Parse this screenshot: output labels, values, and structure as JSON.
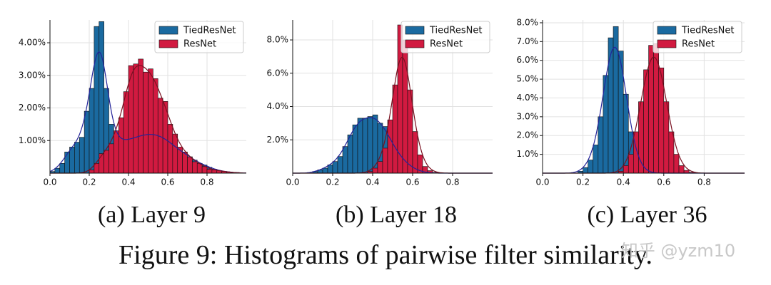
{
  "figure_caption": "Figure 9: Histograms of pairwise filter similarity.",
  "watermark": "知乎 @yzm10",
  "chart_data": [
    {
      "type": "histogram",
      "caption": "(a) Layer 9",
      "legend": "upper right",
      "grid": true,
      "bins": [
        0,
        0.025,
        0.05,
        0.075,
        0.1,
        0.125,
        0.15,
        0.175,
        0.2,
        0.225,
        0.25,
        0.275,
        0.3,
        0.325,
        0.35,
        0.375,
        0.4,
        0.425,
        0.45,
        0.475,
        0.5,
        0.525,
        0.55,
        0.575,
        0.6,
        0.625,
        0.65,
        0.675,
        0.7,
        0.725,
        0.75,
        0.775,
        0.8,
        0.825,
        0.85,
        0.875,
        0.9,
        0.925,
        0.95,
        0.975,
        1
      ],
      "xlim": [
        0,
        1
      ],
      "xticks": [
        {
          "value": 0,
          "label": "0.0"
        },
        0.2,
        0.4,
        0.6,
        0.8
      ],
      "ylim": [
        0,
        4.7
      ],
      "yticks": [
        {
          "value": 1,
          "label": "1.00%"
        },
        {
          "value": 2,
          "label": "2.00%"
        },
        {
          "value": 3,
          "label": "3.00%"
        },
        {
          "value": 4,
          "label": "4.00%"
        }
      ],
      "series": [
        {
          "name": "TiedResNet",
          "color": "#1a6aa0",
          "line_color": "#23239a",
          "values": [
            0.05,
            0.15,
            0.3,
            0.65,
            0.8,
            0.95,
            1.1,
            1.9,
            2.6,
            4.5,
            4.65,
            2.6,
            1.5,
            1.0,
            1.0,
            1.0,
            1.05,
            1.1,
            1.15,
            1.2,
            1.2,
            1.2,
            1.15,
            1.05,
            0.95,
            0.8,
            0.7,
            0.6,
            0.5,
            0.4,
            0.3,
            0.25,
            0.18,
            0.12,
            0.08,
            0.05,
            0.03,
            0.02,
            0.01,
            0
          ]
        },
        {
          "name": "ResNet",
          "color": "#d11a40",
          "line_color": "#7a1020",
          "values": [
            0,
            0,
            0,
            0,
            0,
            0,
            0,
            0,
            0.1,
            0.3,
            0.6,
            0.7,
            0.9,
            1.3,
            1.7,
            2.5,
            3.3,
            3.35,
            3.5,
            3.1,
            3.2,
            2.9,
            2.3,
            2.2,
            1.5,
            1.2,
            0.8,
            0.65,
            0.5,
            0.35,
            0.3,
            0.2,
            0.12,
            0.1,
            0.08,
            0.05,
            0.03,
            0.02,
            0.01,
            0
          ]
        }
      ]
    },
    {
      "type": "histogram",
      "caption": "(b) Layer 18",
      "legend": "upper right",
      "grid": true,
      "bins": [
        0,
        0.025,
        0.05,
        0.075,
        0.1,
        0.125,
        0.15,
        0.175,
        0.2,
        0.225,
        0.25,
        0.275,
        0.3,
        0.325,
        0.35,
        0.375,
        0.4,
        0.425,
        0.45,
        0.475,
        0.5,
        0.525,
        0.55,
        0.575,
        0.6,
        0.625,
        0.65,
        0.675,
        0.7,
        0.725,
        0.75,
        0.775,
        0.8,
        0.825,
        0.85,
        0.875,
        0.9,
        0.925,
        0.95,
        0.975,
        1
      ],
      "xlim": [
        0,
        1
      ],
      "xticks": [
        {
          "value": 0,
          "label": "0.0"
        },
        0.2,
        0.4,
        0.6,
        0.8
      ],
      "ylim": [
        0,
        9.2
      ],
      "yticks": [
        {
          "value": 2,
          "label": "2.0%"
        },
        {
          "value": 4,
          "label": "4.0%"
        },
        {
          "value": 6,
          "label": "6.0%"
        },
        {
          "value": 8,
          "label": "8.0%"
        }
      ],
      "series": [
        {
          "name": "TiedResNet",
          "color": "#1a6aa0",
          "line_color": "#23239a",
          "values": [
            0,
            0,
            0,
            0,
            0.1,
            0.2,
            0.3,
            0.5,
            0.7,
            1.0,
            1.6,
            2.3,
            2.9,
            3.3,
            3.3,
            3.4,
            3.5,
            3.0,
            2.8,
            2.0,
            1.5,
            1.0,
            0.7,
            0.4,
            0.25,
            0.1,
            0.05,
            0,
            0,
            0,
            0,
            0,
            0,
            0,
            0,
            0,
            0,
            0,
            0,
            0
          ]
        },
        {
          "name": "ResNet",
          "color": "#d11a40",
          "line_color": "#7a1020",
          "values": [
            0,
            0,
            0,
            0,
            0,
            0,
            0,
            0,
            0,
            0,
            0,
            0,
            0,
            0,
            0,
            0.1,
            0.3,
            0.7,
            1.5,
            3.2,
            5.3,
            8.9,
            8.0,
            5.0,
            2.5,
            1.1,
            0.4,
            0.15,
            0.05,
            0,
            0,
            0,
            0,
            0,
            0,
            0,
            0,
            0,
            0,
            0
          ]
        }
      ]
    },
    {
      "type": "histogram",
      "caption": "(c) Layer 36",
      "legend": "upper right",
      "grid": true,
      "bins": [
        0,
        0.025,
        0.05,
        0.075,
        0.1,
        0.125,
        0.15,
        0.175,
        0.2,
        0.225,
        0.25,
        0.275,
        0.3,
        0.325,
        0.35,
        0.375,
        0.4,
        0.425,
        0.45,
        0.475,
        0.5,
        0.525,
        0.55,
        0.575,
        0.6,
        0.625,
        0.65,
        0.675,
        0.7,
        0.725,
        0.75,
        0.775,
        0.8,
        0.825,
        0.85,
        0.875,
        0.9,
        0.925,
        0.95,
        0.975,
        1
      ],
      "xlim": [
        0,
        1
      ],
      "xticks": [
        {
          "value": 0,
          "label": "0.0"
        },
        0.2,
        0.4,
        0.6,
        0.8
      ],
      "ylim": [
        0,
        8.15
      ],
      "yticks": [
        {
          "value": 1,
          "label": "1.0%"
        },
        {
          "value": 2,
          "label": "2.0%"
        },
        {
          "value": 3,
          "label": "3.0%"
        },
        {
          "value": 4,
          "label": "4.0%"
        },
        {
          "value": 5,
          "label": "5.0%"
        },
        {
          "value": 6,
          "label": "6.0%"
        },
        {
          "value": 7,
          "label": "7.0%"
        },
        {
          "value": 8,
          "label": "8.0%"
        }
      ],
      "series": [
        {
          "name": "TiedResNet",
          "color": "#1a6aa0",
          "line_color": "#23239a",
          "values": [
            0,
            0,
            0,
            0,
            0,
            0,
            0,
            0.1,
            0.3,
            0.7,
            1.5,
            3.0,
            5.2,
            7.2,
            7.8,
            6.5,
            4.2,
            2.2,
            0.9,
            0.3,
            0.1,
            0,
            0,
            0,
            0,
            0,
            0,
            0,
            0,
            0,
            0,
            0,
            0,
            0,
            0,
            0,
            0,
            0,
            0,
            0
          ]
        },
        {
          "name": "ResNet",
          "color": "#d11a40",
          "line_color": "#7a1020",
          "values": [
            0,
            0,
            0,
            0,
            0,
            0,
            0,
            0,
            0,
            0,
            0,
            0,
            0,
            0,
            0,
            0.1,
            0.4,
            1.0,
            2.2,
            3.8,
            5.5,
            6.8,
            6.9,
            5.6,
            3.8,
            2.2,
            1.0,
            0.4,
            0.15,
            0.05,
            0,
            0,
            0,
            0,
            0,
            0,
            0,
            0,
            0,
            0
          ]
        }
      ]
    }
  ]
}
